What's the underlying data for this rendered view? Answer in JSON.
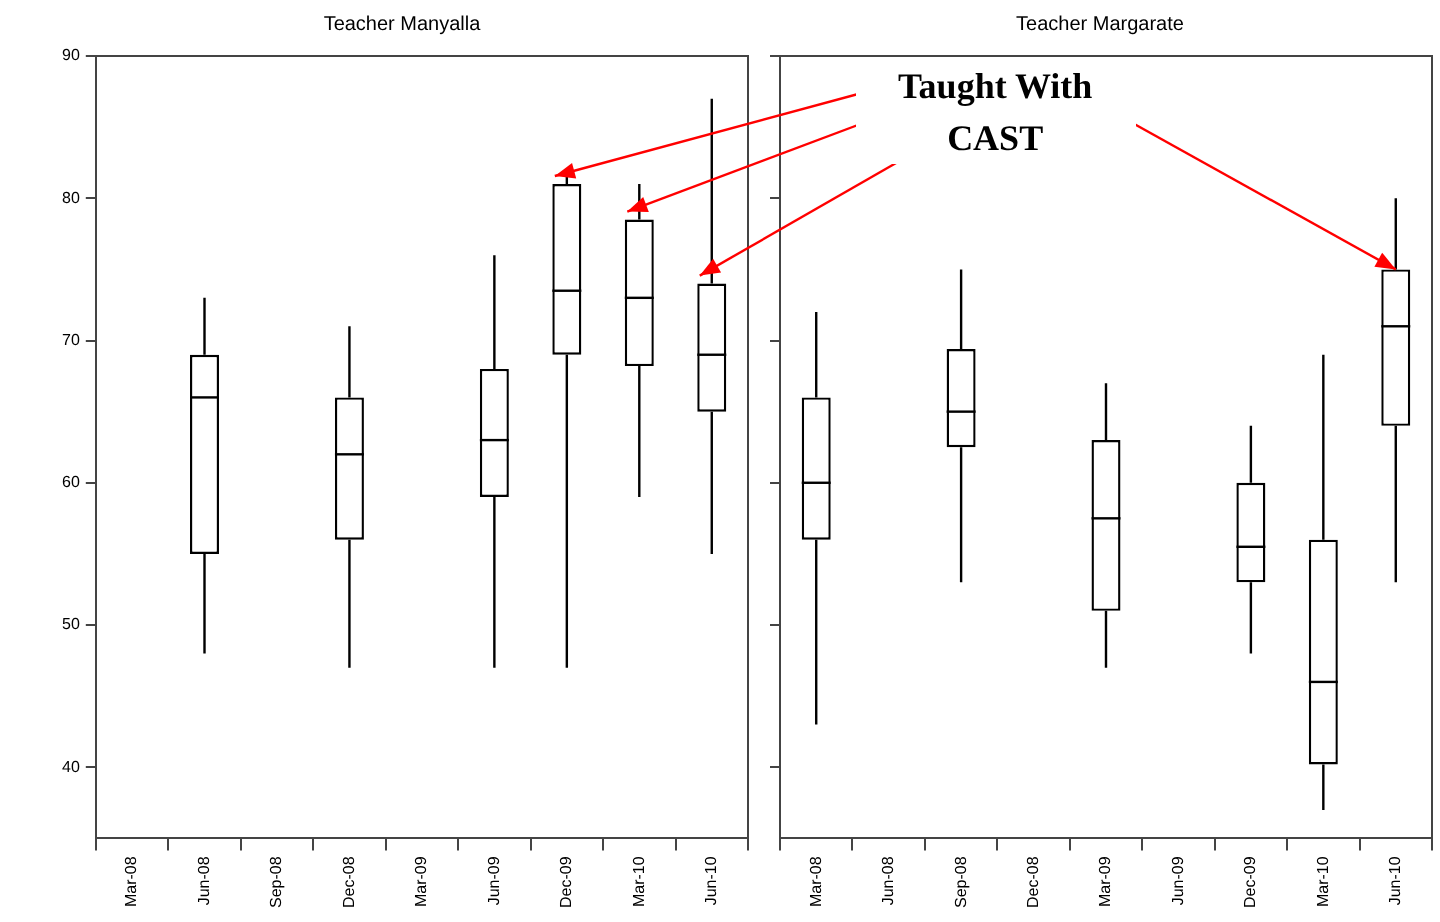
{
  "chart_data": [
    {
      "type": "box",
      "title": "Teacher Manyalla",
      "categories": [
        "Mar-08",
        "Jun-08",
        "Sep-08",
        "Dec-08",
        "Mar-09",
        "Jun-09",
        "Dec-09",
        "Mar-10",
        "Jun-10"
      ],
      "boxes": [
        null,
        {
          "low": 48,
          "q1": 55,
          "median": 66,
          "q3": 69,
          "high": 73
        },
        null,
        {
          "low": 47,
          "q1": 56,
          "median": 62,
          "q3": 66,
          "high": 71
        },
        null,
        {
          "low": 47,
          "q1": 59,
          "median": 63,
          "q3": 68,
          "high": 76
        },
        {
          "low": 47,
          "q1": 69,
          "median": 73.5,
          "q3": 81,
          "high": 82
        },
        {
          "low": 59,
          "q1": 68.2,
          "median": 73,
          "q3": 78.5,
          "high": 81
        },
        {
          "low": 55,
          "q1": 65,
          "median": 69,
          "q3": 74,
          "high": 87
        }
      ],
      "ylim": [
        35,
        90
      ],
      "yticks": [
        40,
        50,
        60,
        70,
        80,
        90
      ],
      "grid": false
    },
    {
      "type": "box",
      "title": "Teacher Margarate",
      "categories": [
        "Mar-08",
        "Jun-08",
        "Sep-08",
        "Dec-08",
        "Mar-09",
        "Jun-09",
        "Dec-09",
        "Mar-10",
        "Jun-10"
      ],
      "boxes": [
        {
          "low": 43,
          "q1": 56,
          "median": 60,
          "q3": 66,
          "high": 72
        },
        null,
        {
          "low": 53,
          "q1": 62.5,
          "median": 65,
          "q3": 69.4,
          "high": 75
        },
        null,
        {
          "low": 47,
          "q1": 51,
          "median": 57.5,
          "q3": 63,
          "high": 67
        },
        null,
        {
          "low": 48,
          "q1": 53,
          "median": 55.5,
          "q3": 60,
          "high": 64
        },
        {
          "low": 37,
          "q1": 40.2,
          "median": 46,
          "q3": 56,
          "high": 69
        },
        {
          "low": 53,
          "q1": 64,
          "median": 71,
          "q3": 75,
          "high": 80
        }
      ],
      "ylim": [
        35,
        90
      ],
      "yticks": [
        40,
        50,
        60,
        70,
        80,
        90
      ],
      "grid": false,
      "tick_labels": "x",
      "annotations": [
        {
          "text": "Taught With CAST",
          "x": "Jun-10",
          "y": 75
        }
      ]
    }
  ]
}
